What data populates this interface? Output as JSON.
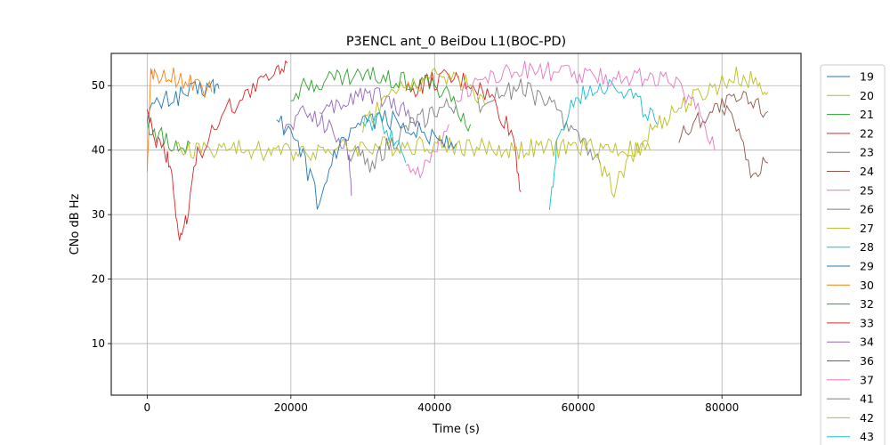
{
  "chart_data": {
    "type": "line",
    "title": "P3ENCL ant_0 BeiDou L1(BOC-PD)",
    "xlabel": "Time (s)",
    "ylabel": "CNo dB Hz",
    "xlim": [
      -5000,
      91000
    ],
    "ylim": [
      2,
      55
    ],
    "xticks": [
      0,
      20000,
      40000,
      60000,
      80000
    ],
    "xtick_labels": [
      "0",
      "20000",
      "40000",
      "60000",
      "80000"
    ],
    "yticks": [
      10,
      20,
      30,
      40,
      50
    ],
    "ytick_labels": [
      "10",
      "20",
      "30",
      "40",
      "50"
    ],
    "grid": true,
    "legend_position": "outside-right",
    "colors": [
      "#1f77b4",
      "#bcbd22",
      "#2ca02c",
      "#d62728",
      "#9467bd",
      "#8c564b",
      "#e377c2",
      "#7f7f7f",
      "#bcbd22",
      "#17becf",
      "#1f77b4",
      "#ff7f0e",
      "#2ca02c",
      "#d62728",
      "#9467bd",
      "#8c564b",
      "#e377c2",
      "#7f7f7f",
      "#bcbd22",
      "#17becf"
    ],
    "series": [
      {
        "name": "19",
        "x": [
          0,
          3000,
          6000,
          9000,
          10000
        ],
        "values": [
          46,
          48,
          49,
          50,
          49.5
        ]
      },
      {
        "name": "20",
        "x": [
          63000,
          65000,
          67000,
          70000,
          73000,
          76000,
          79000,
          82000,
          85000,
          86400
        ],
        "values": [
          37,
          34,
          38,
          43,
          46,
          48,
          50,
          51.5,
          50.5,
          49
        ]
      },
      {
        "name": "21",
        "x": [
          0,
          2000,
          4000,
          6000
        ],
        "values": [
          44,
          42,
          40,
          41
        ]
      },
      {
        "name": "22",
        "x": [
          36000,
          39000,
          42000,
          45000,
          48000,
          51000,
          52000
        ],
        "values": [
          49,
          50.5,
          51,
          50.5,
          48,
          42,
          33.5
        ]
      },
      {
        "name": "23",
        "x": [
          19000,
          22000,
          25000,
          28000,
          28500
        ],
        "values": [
          43,
          46,
          44,
          40,
          33
        ]
      },
      {
        "name": "24",
        "x": [
          74000,
          77000,
          80000,
          83000,
          86400
        ],
        "values": [
          42,
          45,
          47,
          48,
          46
        ]
      },
      {
        "name": "25",
        "x": [
          36000,
          38000,
          40000,
          42000
        ],
        "values": [
          39,
          36,
          40,
          44
        ]
      },
      {
        "name": "26",
        "x": [
          46000,
          49000,
          52000,
          55000,
          58000,
          61000,
          63000
        ],
        "values": [
          47,
          49,
          49.5,
          48,
          45,
          41,
          38
        ]
      },
      {
        "name": "27",
        "x": [
          4000,
          10000,
          20000,
          30000,
          40000,
          50000,
          60000,
          70000
        ],
        "values": [
          40,
          40.2,
          39.8,
          40.5,
          41,
          40,
          40.5,
          40
        ]
      },
      {
        "name": "28",
        "x": [
          56000,
          57000,
          59000,
          62000,
          65000,
          68000,
          71000
        ],
        "values": [
          30.5,
          40,
          47,
          50,
          50.5,
          48,
          44
        ]
      },
      {
        "name": "29",
        "x": [
          18000,
          20000,
          22000,
          24000,
          26000,
          29000,
          32000,
          36000,
          40000,
          43000
        ],
        "values": [
          45,
          42,
          38,
          31,
          39,
          43,
          45,
          44,
          42,
          41
        ]
      },
      {
        "name": "30",
        "x": [
          0,
          500,
          1000,
          3000,
          5000,
          7000,
          9000
        ],
        "values": [
          37.5,
          52,
          51,
          51.5,
          50.8,
          50.5,
          49
        ]
      },
      {
        "name": "32",
        "x": [
          20000,
          25000,
          30000,
          35000,
          40000,
          43000,
          45000
        ],
        "values": [
          49,
          51,
          51.5,
          51,
          50,
          47,
          44
        ]
      },
      {
        "name": "33",
        "x": [
          0,
          1000,
          2500,
          3500,
          4500,
          5500,
          7000,
          10000,
          14000,
          18000,
          19500
        ],
        "values": [
          45,
          42,
          40,
          36,
          25.5,
          30,
          39,
          45,
          49,
          52,
          53.5
        ]
      },
      {
        "name": "34",
        "x": [
          24000,
          27000,
          30000,
          33000,
          36000,
          38000
        ],
        "values": [
          45,
          47,
          49,
          48,
          46,
          44
        ]
      },
      {
        "name": "36",
        "x": [
          80000,
          82000,
          84000,
          86400
        ],
        "values": [
          46,
          44,
          36,
          38
        ]
      },
      {
        "name": "37",
        "x": [
          43000,
          46000,
          50000,
          54000,
          58000,
          62000,
          66000,
          70000,
          74000,
          77000,
          79000
        ],
        "values": [
          48,
          51,
          52,
          52.5,
          52,
          51,
          51.5,
          51,
          50,
          46,
          40
        ]
      },
      {
        "name": "41",
        "x": [
          28000,
          31000,
          34000,
          37000,
          40000,
          43000
        ],
        "values": [
          40,
          38,
          41,
          44,
          46,
          47
        ]
      },
      {
        "name": "42",
        "x": [
          30000,
          33000,
          36000,
          39000,
          42000,
          45000,
          47000
        ],
        "values": [
          44,
          48,
          50,
          51,
          51.5,
          50,
          47
        ]
      },
      {
        "name": "43",
        "x": [
          30000,
          32000,
          34000,
          36000
        ],
        "values": [
          43,
          45,
          42,
          38
        ]
      }
    ]
  }
}
